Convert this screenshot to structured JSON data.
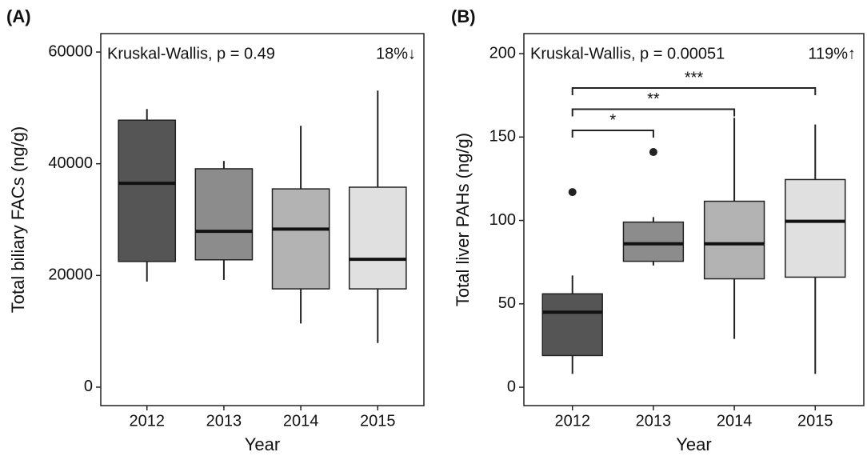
{
  "chart_data": [
    {
      "type": "box",
      "panel": "(A)",
      "annotation": "Kruskal-Wallis, p = 0.49",
      "change": "18%↓",
      "x_label": "Year",
      "y_label": "Total biliary FACs (ng/g)",
      "categories": [
        "2012",
        "2013",
        "2014",
        "2015"
      ],
      "colors": [
        "#555555",
        "#8c8c8c",
        "#b3b3b3",
        "#e0e0e0"
      ],
      "boxes": [
        {
          "low": 18900,
          "q1": 22500,
          "median": 36500,
          "q3": 47800,
          "high": 49800
        },
        {
          "low": 19200,
          "q1": 22800,
          "median": 27900,
          "q3": 39100,
          "high": 40500
        },
        {
          "low": 11400,
          "q1": 17600,
          "median": 28300,
          "q3": 35500,
          "high": 46800
        },
        {
          "low": 7900,
          "q1": 17600,
          "median": 22900,
          "q3": 35800,
          "high": 53100
        }
      ],
      "ylim": [
        -3300,
        63300
      ],
      "yticks": [
        0,
        20000,
        40000,
        60000
      ]
    },
    {
      "type": "box",
      "panel": "(B)",
      "annotation": "Kruskal-Wallis, p = 0.00051",
      "change": "119%↑",
      "x_label": "Year",
      "y_label": "Total liver PAHs (ng/g)",
      "categories": [
        "2012",
        "2013",
        "2014",
        "2015"
      ],
      "colors": [
        "#555555",
        "#8c8c8c",
        "#b3b3b3",
        "#e0e0e0"
      ],
      "boxes": [
        {
          "low": 8,
          "q1": 19,
          "median": 45,
          "q3": 56,
          "high": 67,
          "outliers": [
            117
          ]
        },
        {
          "low": 73,
          "q1": 75.5,
          "median": 86,
          "q3": 99,
          "high": 102,
          "outliers": [
            141
          ]
        },
        {
          "low": 29,
          "q1": 65,
          "median": 86,
          "q3": 111.5,
          "high": 161.5
        },
        {
          "low": 8,
          "q1": 66,
          "median": 99.5,
          "q3": 124.5,
          "high": 157.5
        }
      ],
      "significance": [
        "*",
        "**",
        "***"
      ],
      "ylim": [
        -11,
        212
      ],
      "yticks": [
        0,
        50,
        100,
        150,
        200
      ]
    }
  ]
}
